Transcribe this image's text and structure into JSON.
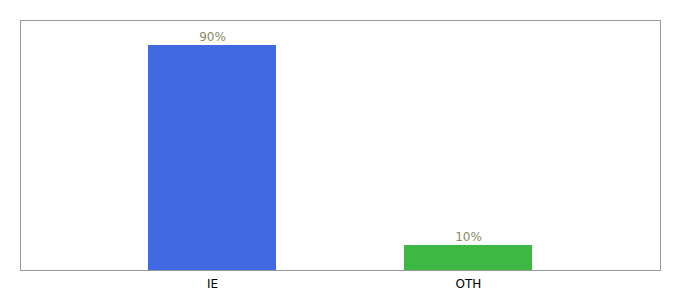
{
  "chart_data": {
    "type": "bar",
    "categories": [
      "IE",
      "OTH"
    ],
    "values": [
      90,
      10
    ],
    "value_labels": [
      "90%",
      "10%"
    ],
    "colors": [
      "#4169e1",
      "#3cb843"
    ],
    "data_labels": true,
    "ylim": [
      0,
      100
    ],
    "tick_labels": "x"
  }
}
